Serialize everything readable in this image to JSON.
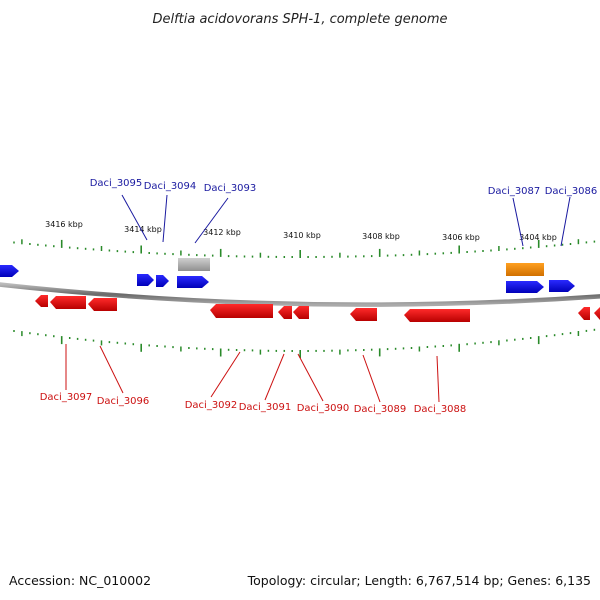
{
  "title": "Delftia acidovorans SPH-1, complete genome",
  "footer": {
    "accession": "Accession: NC_010002",
    "summary": "Topology: circular; Length: 6,767,514 bp; Genes: 6,135"
  },
  "colors": {
    "forward_gene": "#0000e6",
    "reverse_gene": "#e60000",
    "rna_gene": "#f08c00",
    "pseudo_gene": "#a8a8a8",
    "backbone": "#777777",
    "tick": "#2a8a2a",
    "forward_label": "#1a1aa0",
    "reverse_label": "#cc1111"
  },
  "ruler_labels": [
    "3416 kbp",
    "3414 kbp",
    "3412 kbp",
    "3410 kbp",
    "3408 kbp",
    "3406 kbp",
    "3404 kbp"
  ],
  "gene_labels": [
    {
      "text": "Daci_3095",
      "strand": "forward"
    },
    {
      "text": "Daci_3094",
      "strand": "forward"
    },
    {
      "text": "Daci_3093",
      "strand": "forward"
    },
    {
      "text": "Daci_3087",
      "strand": "forward"
    },
    {
      "text": "Daci_3086",
      "strand": "forward"
    },
    {
      "text": "Daci_3097",
      "strand": "reverse"
    },
    {
      "text": "Daci_3096",
      "strand": "reverse"
    },
    {
      "text": "Daci_3092",
      "strand": "reverse"
    },
    {
      "text": "Daci_3091",
      "strand": "reverse"
    },
    {
      "text": "Daci_3090",
      "strand": "reverse"
    },
    {
      "text": "Daci_3089",
      "strand": "reverse"
    },
    {
      "text": "Daci_3088",
      "strand": "reverse"
    }
  ]
}
